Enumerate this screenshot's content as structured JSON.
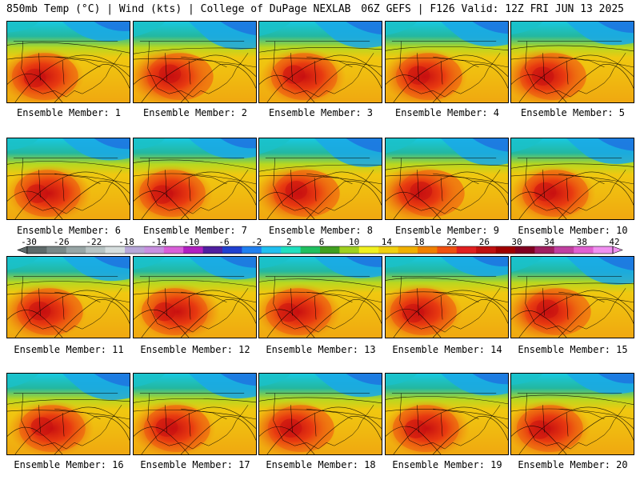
{
  "header": {
    "left_title": "850mb Temp (°C) | Wind (kts) | College of DuPage NEXLAB",
    "right_title": "06Z GEFS | F126 Valid: 12Z FRI JUN 13 2025"
  },
  "panels": [
    {
      "label": "Ensemble Member: 1"
    },
    {
      "label": "Ensemble Member: 2"
    },
    {
      "label": "Ensemble Member: 3"
    },
    {
      "label": "Ensemble Member: 4"
    },
    {
      "label": "Ensemble Member: 5"
    },
    {
      "label": "Ensemble Member: 6"
    },
    {
      "label": "Ensemble Member: 7"
    },
    {
      "label": "Ensemble Member: 8"
    },
    {
      "label": "Ensemble Member: 9"
    },
    {
      "label": "Ensemble Member: 10"
    },
    {
      "label": "Ensemble Member: 11"
    },
    {
      "label": "Ensemble Member: 12"
    },
    {
      "label": "Ensemble Member: 13"
    },
    {
      "label": "Ensemble Member: 14"
    },
    {
      "label": "Ensemble Member: 15"
    },
    {
      "label": "Ensemble Member: 16"
    },
    {
      "label": "Ensemble Member: 17"
    },
    {
      "label": "Ensemble Member: 18"
    },
    {
      "label": "Ensemble Member: 19"
    },
    {
      "label": "Ensemble Member: 20"
    }
  ],
  "colorbar": {
    "tick_labels": [
      "-30",
      "-26",
      "-22",
      "-18",
      "-14",
      "-10",
      "-6",
      "-2",
      "2",
      "6",
      "10",
      "14",
      "18",
      "22",
      "26",
      "30",
      "34",
      "38",
      "42"
    ],
    "colors": [
      "#5e6a6a",
      "#7a8888",
      "#98a6a6",
      "#b8c4c4",
      "#d6dede",
      "#b8a8d8",
      "#c890e0",
      "#d860d8",
      "#b020c0",
      "#5020a0",
      "#2040d0",
      "#2080f0",
      "#20c0f0",
      "#20e0c0",
      "#20c060",
      "#40a020",
      "#a0d020",
      "#f0f020",
      "#f0d010",
      "#f0b000",
      "#f08000",
      "#f05010",
      "#e02020",
      "#c01010",
      "#a00000",
      "#800020",
      "#a02060",
      "#c040a0",
      "#e060d0",
      "#f090f0"
    ]
  }
}
